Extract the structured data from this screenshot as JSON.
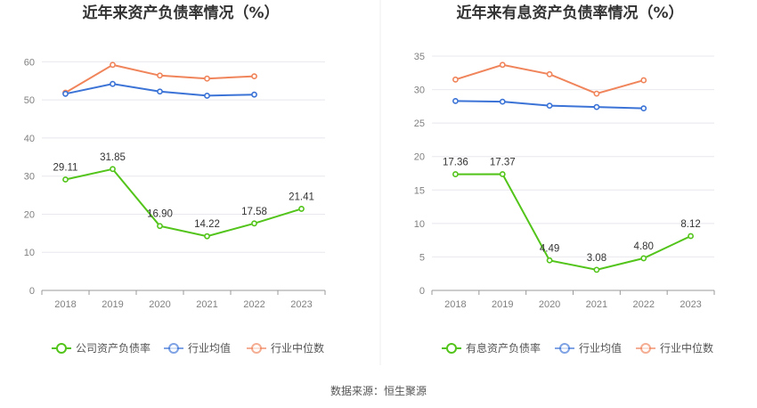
{
  "source_label": "数据来源：恒生聚源",
  "chart_data": [
    {
      "type": "line",
      "title": "近年来资产负债率情况（%）",
      "categories": [
        "2018",
        "2019",
        "2020",
        "2021",
        "2022",
        "2023"
      ],
      "ylim": [
        0,
        65
      ],
      "yticks": [
        0,
        10,
        20,
        30,
        40,
        50,
        60
      ],
      "grid": true,
      "legend_position": "bottom",
      "series": [
        {
          "name": "公司资产负债率",
          "color": "#52c41a",
          "values": [
            29.11,
            31.85,
            16.9,
            14.22,
            17.58,
            21.41
          ],
          "labels": [
            "29.11",
            "31.85",
            "16.90",
            "14.22",
            "17.58",
            "21.41"
          ]
        },
        {
          "name": "行业均值",
          "color": "#3b73d6",
          "values": [
            51.6,
            54.2,
            52.2,
            51.1,
            51.4,
            null
          ]
        },
        {
          "name": "行业中位数",
          "color": "#f0845a",
          "values": [
            51.9,
            59.2,
            56.4,
            55.6,
            56.2,
            null
          ]
        }
      ]
    },
    {
      "type": "line",
      "title": "近年来有息资产负债率情况（%）",
      "categories": [
        "2018",
        "2019",
        "2020",
        "2021",
        "2022",
        "2023"
      ],
      "ylim": [
        0,
        37
      ],
      "yticks": [
        0,
        5,
        10,
        15,
        20,
        25,
        30,
        35
      ],
      "grid": true,
      "legend_position": "bottom",
      "series": [
        {
          "name": "有息资产负债率",
          "color": "#52c41a",
          "values": [
            17.36,
            17.37,
            4.49,
            3.08,
            4.8,
            8.12
          ],
          "labels": [
            "17.36",
            "17.37",
            "4.49",
            "3.08",
            "4.80",
            "8.12"
          ]
        },
        {
          "name": "行业均值",
          "color": "#3b73d6",
          "values": [
            28.3,
            28.2,
            27.6,
            27.4,
            27.2,
            null
          ]
        },
        {
          "name": "行业中位数",
          "color": "#f0845a",
          "values": [
            31.5,
            33.7,
            32.3,
            29.4,
            31.4,
            null
          ]
        }
      ]
    }
  ]
}
